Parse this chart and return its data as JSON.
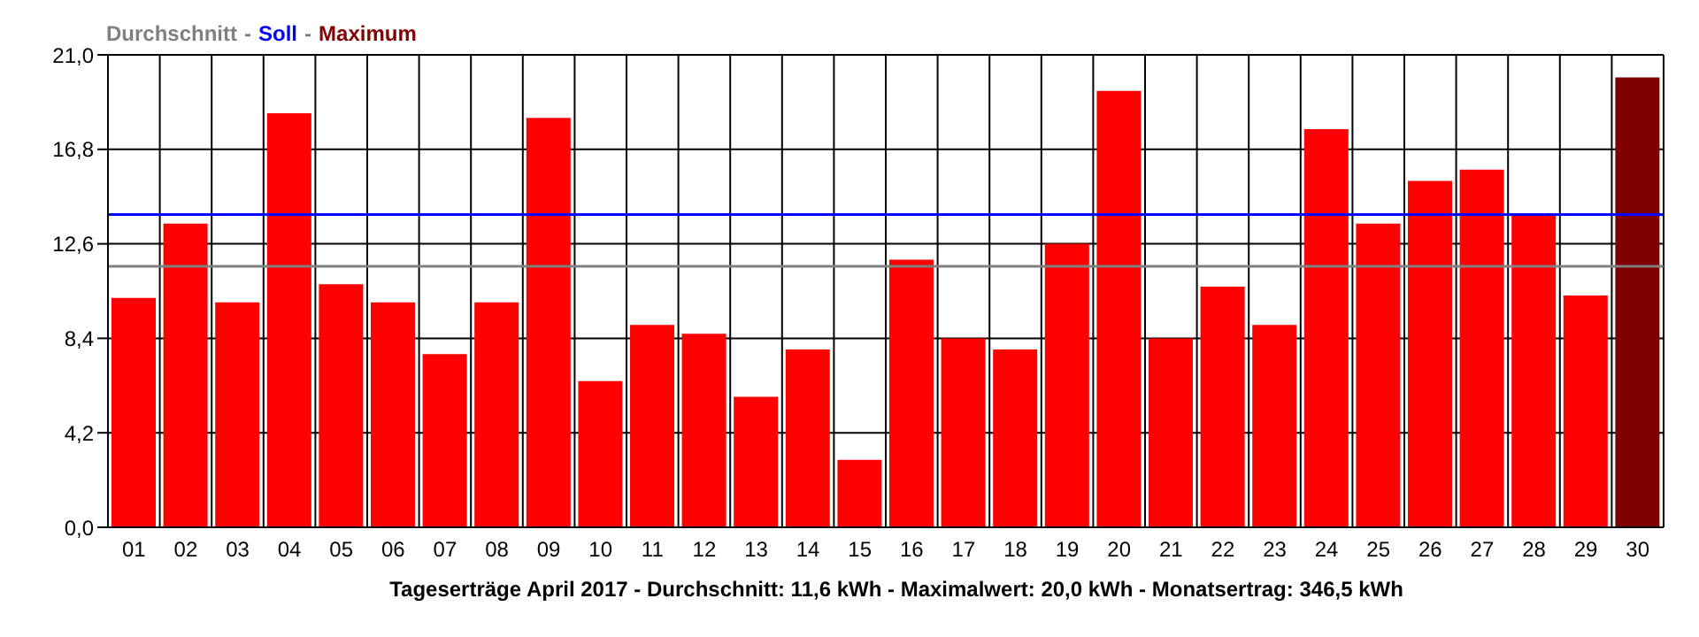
{
  "chart_data": {
    "type": "bar",
    "categories": [
      "01",
      "02",
      "03",
      "04",
      "05",
      "06",
      "07",
      "08",
      "09",
      "10",
      "11",
      "12",
      "13",
      "14",
      "15",
      "16",
      "17",
      "18",
      "19",
      "20",
      "21",
      "22",
      "23",
      "24",
      "25",
      "26",
      "27",
      "28",
      "29",
      "30"
    ],
    "values": [
      10.2,
      13.5,
      10.0,
      18.4,
      10.8,
      10.0,
      7.7,
      10.0,
      18.2,
      6.5,
      9.0,
      8.6,
      5.8,
      7.9,
      3.0,
      11.9,
      8.4,
      7.9,
      12.6,
      19.4,
      8.4,
      10.7,
      9.0,
      17.7,
      13.5,
      15.4,
      15.9,
      13.9,
      10.3,
      20.0
    ],
    "colors": [
      "#ff0000",
      "#ff0000",
      "#ff0000",
      "#ff0000",
      "#ff0000",
      "#ff0000",
      "#ff0000",
      "#ff0000",
      "#ff0000",
      "#ff0000",
      "#ff0000",
      "#ff0000",
      "#ff0000",
      "#ff0000",
      "#ff0000",
      "#ff0000",
      "#ff0000",
      "#ff0000",
      "#ff0000",
      "#ff0000",
      "#ff0000",
      "#ff0000",
      "#ff0000",
      "#ff0000",
      "#ff0000",
      "#ff0000",
      "#ff0000",
      "#ff0000",
      "#ff0000",
      "#800000"
    ],
    "ylim": [
      0,
      21
    ],
    "yticks": [
      {
        "value": 0,
        "label": "0,0"
      },
      {
        "value": 4.2,
        "label": "4,2"
      },
      {
        "value": 8.4,
        "label": "8,4"
      },
      {
        "value": 12.6,
        "label": "12,6"
      },
      {
        "value": 16.8,
        "label": "16,8"
      },
      {
        "value": 21,
        "label": "21,0"
      }
    ],
    "grid": true,
    "legend": "top left",
    "ref_lines": [
      {
        "axis": "y",
        "value": 11.6,
        "label": "Durchschnitt",
        "color": "#808080"
      },
      {
        "axis": "y",
        "value": 13.9,
        "label": "Soll",
        "color": "#0000ff"
      }
    ],
    "annotations": [
      "-",
      "Maximum",
      "Tageserträge April 2017 - Durchschnitt: 11,6 kWh - Maximalwert: 20,0 kWh - Monatsertrag: 346,5 kWh"
    ]
  }
}
